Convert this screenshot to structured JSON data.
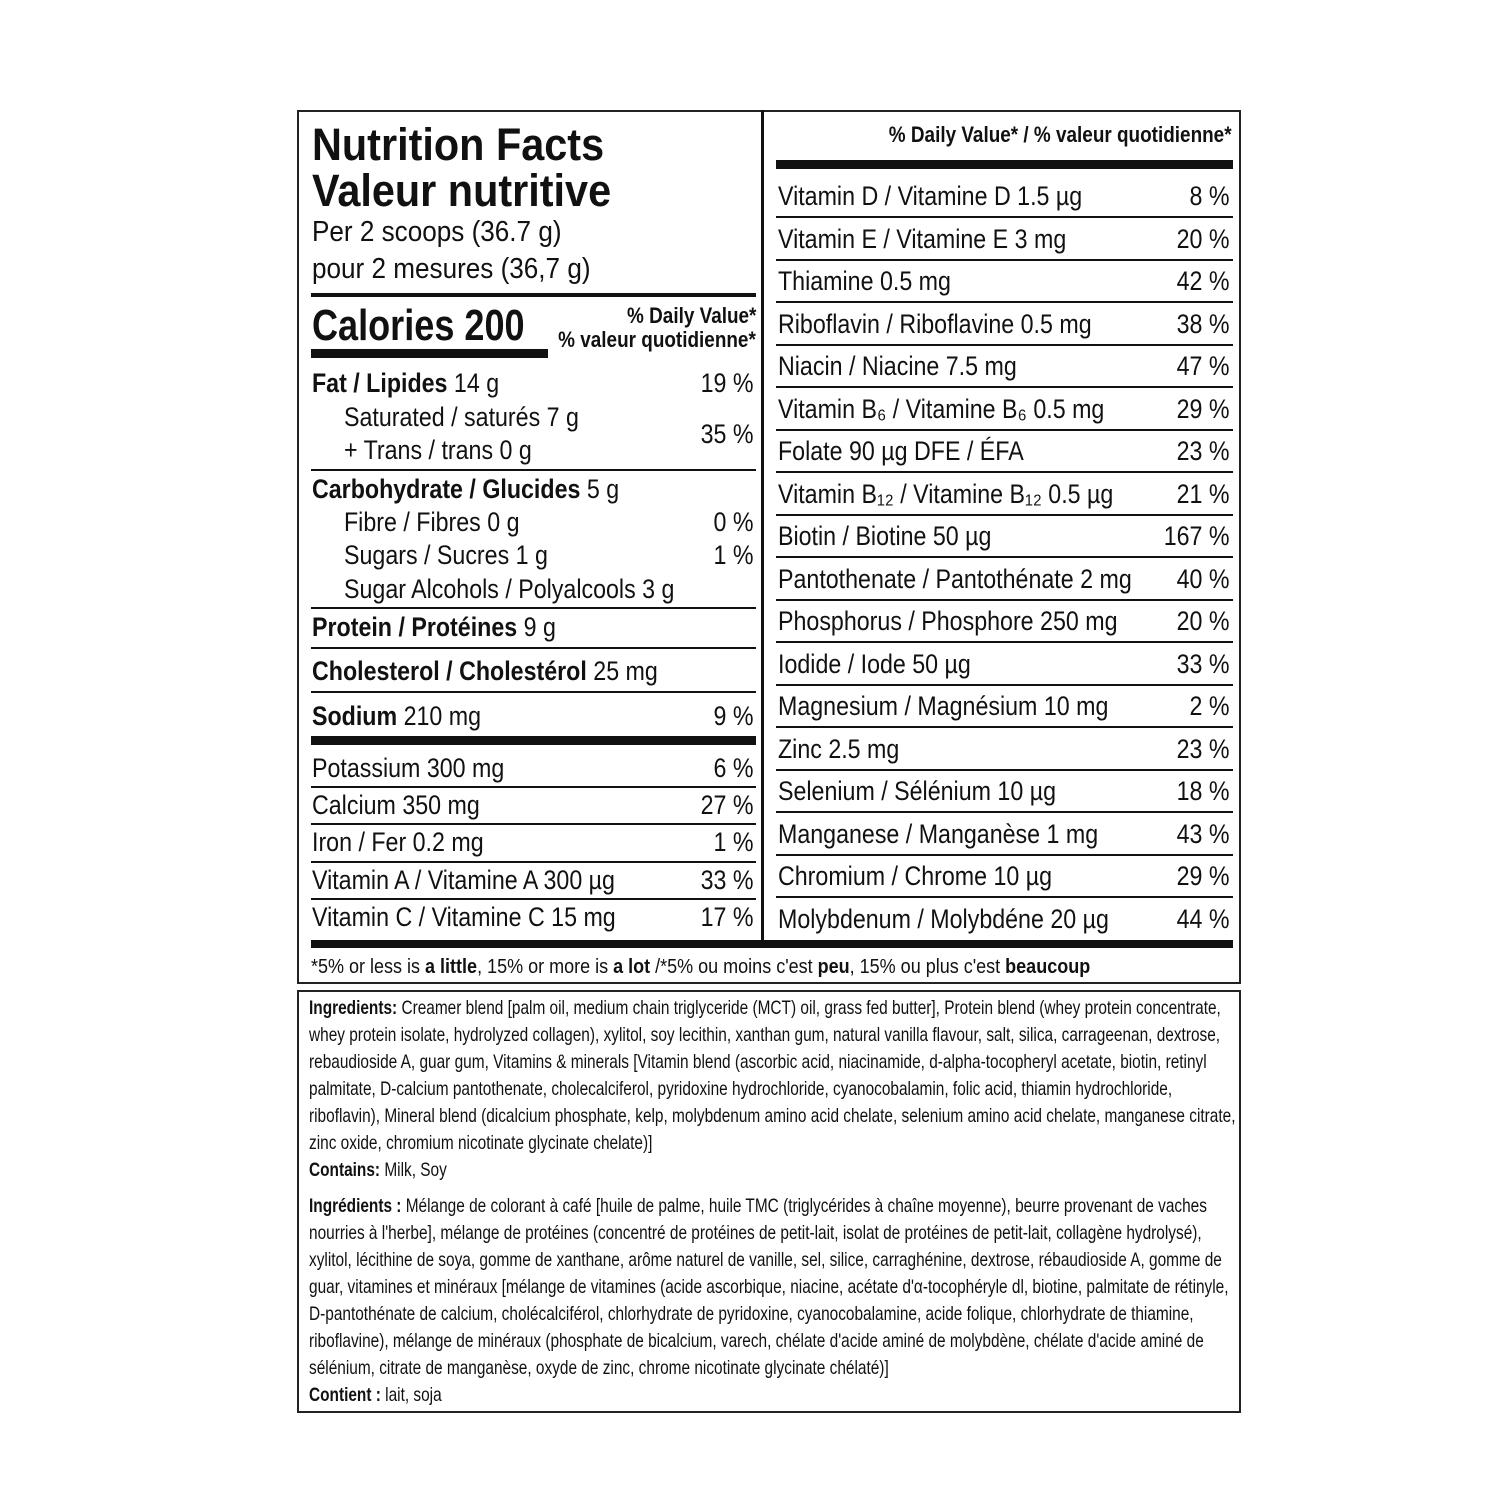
{
  "header": {
    "title_en": "Nutrition Facts",
    "title_fr": "Valeur nutritive",
    "serving_en": "Per 2 scoops (36.7 g)",
    "serving_fr": "pour 2 mesures (36,7 g)",
    "calories_label": "Calories 200",
    "dv_en": "% Daily Value*",
    "dv_fr": "% valeur quotidienne*"
  },
  "left_rows": [
    {
      "bold": "Fat / Lipides",
      "text": " 14 g",
      "value": "19 %",
      "indent": false
    },
    {
      "bold": "",
      "text": "Saturated / saturés 7 g",
      "value": "",
      "indent": true
    },
    {
      "bold": "",
      "text": "+ Trans / trans 0 g",
      "value": "",
      "indent": true
    },
    {
      "bold": "Carbohydrate / Glucides",
      "text": " 5 g",
      "value": "",
      "indent": false
    },
    {
      "bold": "",
      "text": "Fibre / Fibres 0 g",
      "value": "0 %",
      "indent": true
    },
    {
      "bold": "",
      "text": "Sugars / Sucres 1 g",
      "value": "1 %",
      "indent": true
    },
    {
      "bold": "",
      "text": "Sugar Alcohols / Polyalcools 3 g",
      "value": "",
      "indent": true
    },
    {
      "bold": "Protein / Protéines",
      "text": " 9 g",
      "value": "",
      "indent": false
    },
    {
      "bold": "Cholesterol / Cholestérol",
      "text": " 25 mg",
      "value": "",
      "indent": false
    },
    {
      "bold": "Sodium",
      "text": " 210 mg",
      "value": "9 %",
      "indent": false
    },
    {
      "bold": "",
      "text": "Potassium 300 mg",
      "value": "6 %",
      "indent": false
    },
    {
      "bold": "",
      "text": "Calcium 350 mg",
      "value": "27 %",
      "indent": false
    },
    {
      "bold": "",
      "text": "Iron / Fer 0.2 mg",
      "value": "1 %",
      "indent": false
    },
    {
      "bold": "",
      "text": "Vitamin A / Vitamine A 300 µg",
      "value": "33 %",
      "indent": false
    },
    {
      "bold": "",
      "text": "Vitamin C / Vitamine C 15 mg",
      "value": "17 %",
      "indent": false
    }
  ],
  "sat_trans_value": "35 %",
  "right_header": "% Daily Value* / % valeur quotidienne*",
  "right_rows": [
    {
      "text": "Vitamin D / Vitamine D 1.5 µg",
      "value": "8 %"
    },
    {
      "text": "Vitamin E / Vitamine E 3 mg",
      "value": "20 %"
    },
    {
      "text": "Thiamine 0.5 mg",
      "value": "42 %"
    },
    {
      "text": "Riboflavin / Riboflavine 0.5 mg",
      "value": "38 %"
    },
    {
      "text": "Niacin / Niacine 7.5 mg",
      "value": "47 %"
    },
    {
      "text": "Vitamin B₆ / Vitamine B₆ 0.5 mg",
      "value": "29 %"
    },
    {
      "text": "Folate 90 µg DFE / ÉFA",
      "value": "23 %"
    },
    {
      "text": "Vitamin B₁₂ / Vitamine B₁₂ 0.5 µg",
      "value": "21 %"
    },
    {
      "text": "Biotin / Biotine 50 µg",
      "value": "167 %"
    },
    {
      "text": "Pantothenate / Pantothénate  2 mg",
      "value": "40 %"
    },
    {
      "text": "Phosphorus / Phosphore 250 mg",
      "value": "20 %"
    },
    {
      "text": "Iodide / Iode 50 µg",
      "value": "33 %"
    },
    {
      "text": "Magnesium / Magnésium 10 mg",
      "value": "2 %"
    },
    {
      "text": "Zinc 2.5 mg",
      "value": "23 %"
    },
    {
      "text": "Selenium / Sélénium 10 µg",
      "value": "18 %"
    },
    {
      "text": "Manganese / Manganèse 1 mg",
      "value": "43 %"
    },
    {
      "text": "Chromium / Chrome 10 µg",
      "value": "29 %"
    },
    {
      "text": "Molybdenum / Molybdéne 20 µg",
      "value": "44 %"
    }
  ],
  "footnote": [
    {
      "bold": false,
      "text": "*5% or less is "
    },
    {
      "bold": true,
      "text": "a little"
    },
    {
      "bold": false,
      "text": ", 15% or more is "
    },
    {
      "bold": true,
      "text": "a lot"
    },
    {
      "bold": false,
      "text": " /*5% ou moins c'est "
    },
    {
      "bold": true,
      "text": "peu"
    },
    {
      "bold": false,
      "text": ", 15% ou plus c'est "
    },
    {
      "bold": true,
      "text": "beaucoup"
    }
  ],
  "ingredients_en": {
    "label": "Ingredients:",
    "text": " Creamer blend [palm oil, medium chain triglyceride (MCT) oil, grass fed butter], Protein blend (whey protein concentrate, whey protein isolate, hydrolyzed collagen), xylitol, soy lecithin, xanthan gum, natural vanilla flavour, salt, silica, carrageenan, dextrose, rebaudioside A, guar gum, Vitamins & minerals [Vitamin blend (ascorbic acid, niacinamide, d-alpha-tocopheryl acetate, biotin, retinyl palmitate, D-calcium pantothenate, cholecalciferol, pyridoxine hydrochloride, cyanocobalamin, folic acid, thiamin hydrochloride, riboflavin), Mineral blend (dicalcium phosphate, kelp, molybdenum amino acid chelate, selenium amino acid chelate, manganese citrate, zinc oxide, chromium nicotinate glycinate chelate)]",
    "contains_label": "Contains:",
    "contains": " Milk, Soy"
  },
  "ingredients_fr": {
    "label": "Ingrédients :",
    "text": " Mélange de colorant à café [huile de palme, huile TMC (triglycérides à chaîne moyenne), beurre provenant de vaches nourries à l'herbe], mélange de protéines (concentré de protéines de petit-lait, isolat de protéines de petit-lait, collagène hydrolysé), xylitol, lécithine de soya, gomme de xanthane, arôme naturel de vanille, sel, silice, carraghénine, dextrose, rébaudioside A, gomme de guar, vitamines et minéraux [mélange de vitamines (acide ascorbique, niacine, acétate d'α-tocophéryle dl, biotine, palmitate de rétinyle, D-pantothénate de calcium, cholécalciférol, chlorhydrate de pyridoxine, cyanocobalamine, acide folique, chlorhydrate de thiamine, riboflavine), mélange de minéraux (phosphate de bicalcium, varech, chélate d'acide aminé de molybdène, chélate d'acide aminé de sélénium, citrate de manganèse, oxyde de zinc, chrome nicotinate glycinate chélaté)]",
    "contains_label": "Contient :",
    "contains": " lait, soja"
  }
}
